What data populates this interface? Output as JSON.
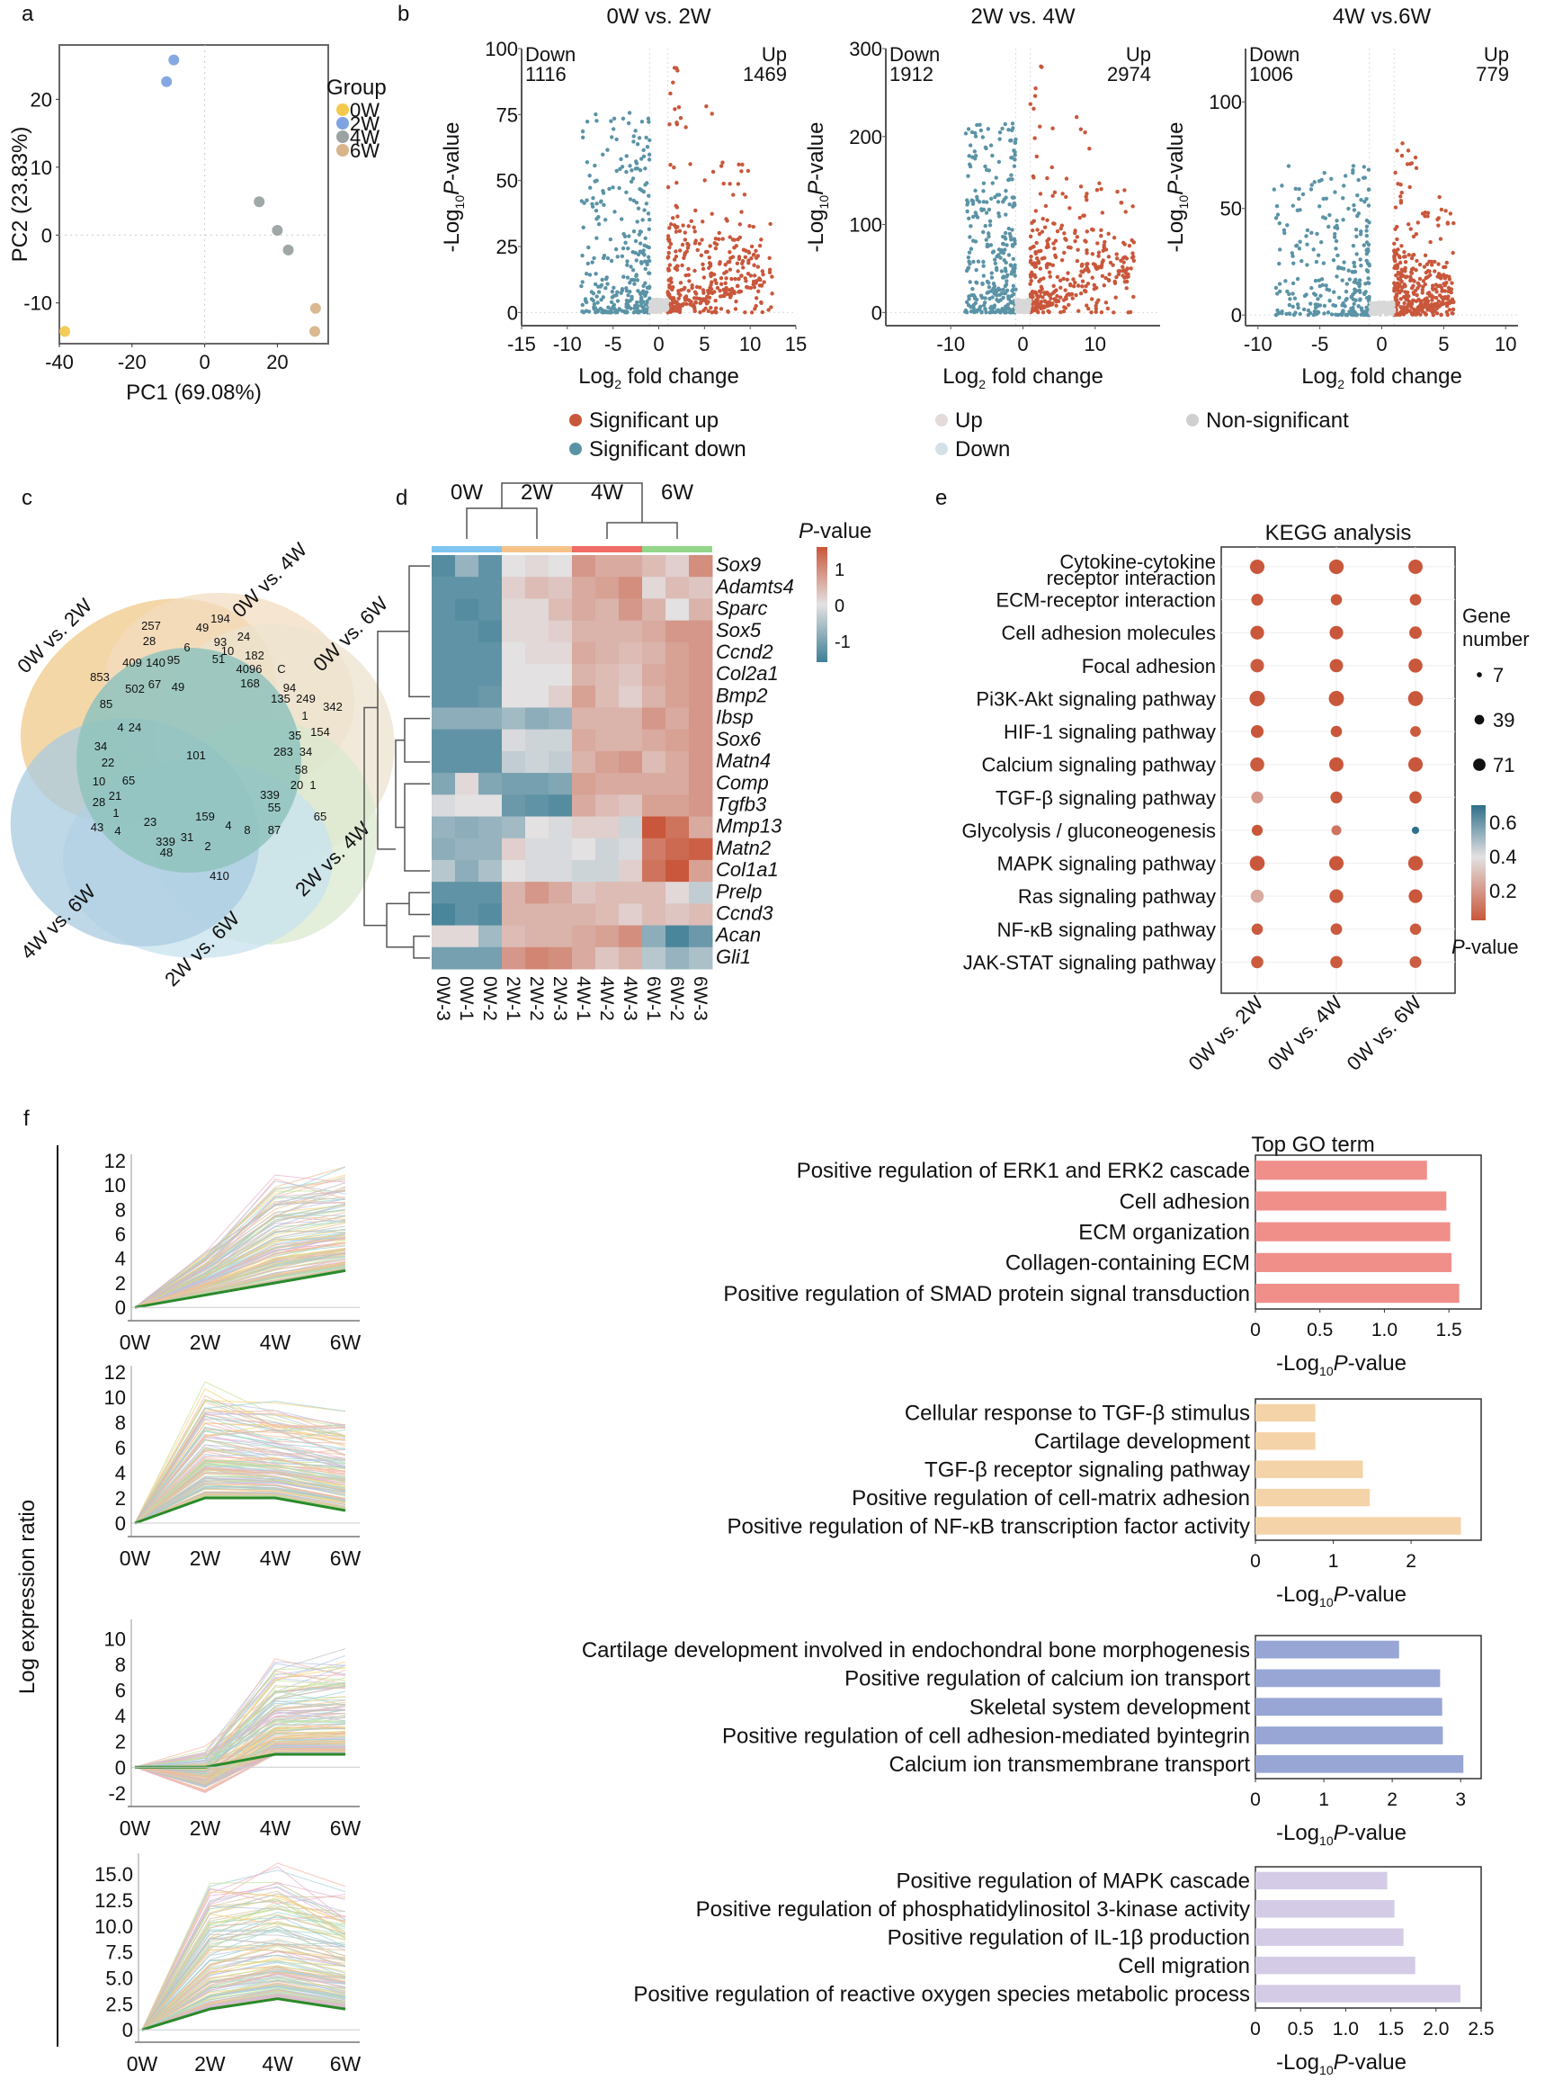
{
  "panel_labels": [
    "a",
    "b",
    "c",
    "d",
    "e",
    "f"
  ],
  "chart_data": [
    {
      "id": "a",
      "type": "scatter",
      "title": "",
      "xlabel": "PC1 (69.08%)",
      "ylabel": "PC2 (23.83%)",
      "xlim": [
        -40,
        34
      ],
      "ylim": [
        -16,
        28
      ],
      "xticks": [
        -40,
        -20,
        0,
        20
      ],
      "yticks": [
        -10,
        0,
        10,
        20
      ],
      "legend_title": "Group",
      "legend_position": "right",
      "groups": [
        {
          "name": "0W",
          "color": "#f2c94c",
          "points": [
            [
              -38.5,
              -14.2
            ]
          ]
        },
        {
          "name": "2W",
          "color": "#7fa3e0",
          "points": [
            [
              -8.5,
              25.8
            ],
            [
              -10.5,
              22.6
            ]
          ]
        },
        {
          "name": "4W",
          "color": "#9aa2a2",
          "points": [
            [
              15,
              4.9
            ],
            [
              20,
              0.7
            ],
            [
              23,
              -2.2
            ]
          ]
        },
        {
          "name": "6W",
          "color": "#d8b48a",
          "points": [
            [
              30.5,
              -10.8
            ],
            [
              30.3,
              -14.2
            ]
          ]
        }
      ]
    },
    {
      "id": "b1",
      "type": "scatter",
      "title": "0W vs. 2W",
      "xlabel": "Log2 fold change",
      "ylabel": "-Log10 P-value",
      "xlim": [
        -15,
        15
      ],
      "ylim": [
        -5,
        100
      ],
      "xticks": [
        -15,
        -10,
        -5,
        0,
        5,
        10,
        15
      ],
      "yticks": [
        0,
        25,
        50,
        75,
        100
      ],
      "down_label": "Down",
      "down_count": "1116",
      "up_label": "Up",
      "up_count": "1469",
      "vlines": [
        -1,
        1
      ],
      "spread": {
        "down_xmin": -8.5,
        "up_xmax": 12.5,
        "down_ymax": 78,
        "up_ymax": 98
      }
    },
    {
      "id": "b2",
      "type": "scatter",
      "title": "2W vs. 4W",
      "xlabel": "Log2 fold change",
      "ylabel": "-Log10 P-value",
      "xlim": [
        -19,
        19
      ],
      "ylim": [
        -15,
        300
      ],
      "xticks": [
        -10,
        0,
        10
      ],
      "yticks": [
        0,
        100,
        200,
        300
      ],
      "down_label": "Down",
      "down_count": "1912",
      "up_label": "Up",
      "up_count": "2974",
      "vlines": [
        -1,
        1
      ],
      "spread": {
        "down_xmin": -8,
        "up_xmax": 15.5,
        "down_ymax": 215,
        "up_ymax": 300
      }
    },
    {
      "id": "b3",
      "type": "scatter",
      "title": "4W vs.6W",
      "xlabel": "Log2 fold change",
      "ylabel": "-Log10 P-value",
      "xlim": [
        -11,
        11
      ],
      "ylim": [
        -5,
        125
      ],
      "xticks": [
        -10,
        -5,
        0,
        5,
        10
      ],
      "yticks": [
        0,
        50,
        100
      ],
      "down_label": "Down",
      "down_count": "1006",
      "up_label": "Up",
      "up_count": "779",
      "vlines": [
        -1,
        1
      ],
      "spread": {
        "down_xmin": -8.7,
        "up_xmax": 5.8,
        "down_ymax": 70,
        "up_ymax": 90
      }
    },
    {
      "id": "b_legend",
      "type": "legend",
      "entries": [
        {
          "label": "Significant up",
          "color": "#c9573b"
        },
        {
          "label": "Significant down",
          "color": "#5b93a6"
        },
        {
          "label": "Up",
          "color": "#e3dada"
        },
        {
          "label": "Down",
          "color": "#d3e0e8"
        },
        {
          "label": "Non-significant",
          "color": "#cfcfcf"
        }
      ]
    },
    {
      "id": "c",
      "type": "venn",
      "sets": [
        "0W vs. 2W",
        "0W vs. 4W",
        "0W vs. 6W",
        "2W vs. 4W",
        "2W vs. 6W",
        "4W vs. 6W"
      ],
      "set_colors": [
        "#f0c98a",
        "#f3dcc0",
        "#ece3cf",
        "#d9e8cf",
        "#c7e2ef",
        "#a9cbe0"
      ],
      "center_color": "#8fc3bd",
      "region_counts": [
        "194",
        "257",
        "49",
        "24",
        "28",
        "6",
        "93",
        "10",
        "51",
        "182",
        "409",
        "140",
        "95",
        "4096",
        "C",
        "853",
        "502",
        "67",
        "49",
        "168",
        "94",
        "135",
        "249",
        "342",
        "85",
        "4",
        "24",
        "1",
        "154",
        "101",
        "35",
        "283",
        "34",
        "34",
        "58",
        "22",
        "65",
        "10",
        "20",
        "1",
        "28",
        "21",
        "339",
        "55",
        "1",
        "65",
        "43",
        "4",
        "23",
        "159",
        "4",
        "8",
        "87",
        "339",
        "31",
        "2",
        "48",
        "410"
      ]
    },
    {
      "id": "d",
      "type": "heatmap",
      "legend_title": "P-value",
      "legend_ticks": [
        1,
        0,
        -1
      ],
      "scale": [
        -1.5,
        1.5
      ],
      "group_labels": [
        "0W",
        "2W",
        "4W",
        "6W"
      ],
      "group_colors": [
        "#7ec6f0",
        "#f7c28a",
        "#ef6b64",
        "#93d68a"
      ],
      "columns": [
        "0W-3",
        "0W-1",
        "0W-2",
        "2W-1",
        "2W-2",
        "2W-3",
        "4W-1",
        "4W-2",
        "4W-3",
        "6W-1",
        "6W-2",
        "6W-3"
      ],
      "rows": [
        "Sox9",
        "Adamts4",
        "Sparc",
        "Sox5",
        "Ccnd2",
        "Col2a1",
        "Bmp2",
        "Ibsp",
        "Sox6",
        "Matn4",
        "Comp",
        "Tgfb3",
        "Mmp13",
        "Matn2",
        "Col1a1",
        "Prelp",
        "Ccnd3",
        "Acan",
        "Gli1"
      ],
      "values": [
        [
          -1.3,
          -0.7,
          -1.2,
          0.0,
          0.1,
          0.0,
          0.8,
          0.6,
          0.6,
          0.4,
          0.2,
          0.9
        ],
        [
          -1.2,
          -1.2,
          -1.2,
          0.2,
          0.4,
          0.3,
          0.6,
          0.7,
          0.9,
          0.1,
          0.4,
          0.3
        ],
        [
          -1.2,
          -1.3,
          -1.2,
          0.1,
          0.1,
          0.4,
          0.6,
          0.5,
          0.8,
          0.5,
          0.0,
          0.5
        ],
        [
          -1.2,
          -1.2,
          -1.3,
          0.1,
          0.1,
          0.2,
          0.5,
          0.5,
          0.5,
          0.6,
          0.8,
          0.8
        ],
        [
          -1.2,
          -1.2,
          -1.2,
          0.0,
          0.1,
          0.1,
          0.6,
          0.5,
          0.4,
          0.5,
          0.7,
          0.8
        ],
        [
          -1.2,
          -1.2,
          -1.2,
          0.0,
          0.0,
          0.0,
          0.5,
          0.4,
          0.3,
          0.6,
          0.7,
          0.8
        ],
        [
          -1.2,
          -1.2,
          -1.1,
          0.0,
          0.0,
          0.2,
          0.7,
          0.4,
          0.2,
          0.5,
          0.7,
          0.8
        ],
        [
          -0.8,
          -0.8,
          -0.8,
          -0.6,
          -0.8,
          -0.7,
          0.5,
          0.5,
          0.5,
          0.8,
          0.6,
          0.8
        ],
        [
          -1.2,
          -1.2,
          -1.2,
          -0.1,
          -0.2,
          -0.2,
          0.6,
          0.5,
          0.5,
          0.6,
          0.7,
          0.8
        ],
        [
          -1.2,
          -1.2,
          -1.2,
          -0.3,
          -0.2,
          -0.3,
          0.5,
          0.7,
          0.8,
          0.4,
          0.6,
          0.8
        ],
        [
          -0.9,
          0.1,
          -0.9,
          -1.0,
          -1.0,
          -0.9,
          0.7,
          0.6,
          0.6,
          0.6,
          0.6,
          0.8
        ],
        [
          -0.1,
          0.0,
          0.0,
          -1.1,
          -1.2,
          -1.3,
          0.6,
          0.4,
          0.3,
          0.7,
          0.7,
          0.8
        ],
        [
          -0.7,
          -0.8,
          -0.7,
          -0.6,
          0.0,
          -0.1,
          0.2,
          0.2,
          -0.2,
          1.6,
          1.2,
          0.6
        ],
        [
          -0.8,
          -0.7,
          -0.7,
          0.2,
          -0.1,
          -0.1,
          0.0,
          -0.2,
          -0.1,
          1.1,
          1.3,
          1.4
        ],
        [
          -0.4,
          -0.8,
          -0.5,
          0.0,
          -0.1,
          -0.1,
          -0.2,
          -0.2,
          0.2,
          1.2,
          1.7,
          0.7
        ],
        [
          -1.2,
          -1.2,
          -1.2,
          0.5,
          0.8,
          0.6,
          0.3,
          0.4,
          0.4,
          0.4,
          0.1,
          -0.3
        ],
        [
          -1.4,
          -1.2,
          -1.3,
          0.5,
          0.5,
          0.5,
          0.5,
          0.4,
          0.2,
          0.4,
          0.3,
          0.4
        ],
        [
          0.1,
          0.1,
          -0.6,
          0.4,
          0.5,
          0.5,
          0.6,
          0.7,
          0.9,
          -0.8,
          -1.4,
          -1.1
        ],
        [
          -1.0,
          -1.0,
          -1.0,
          0.8,
          1.0,
          0.9,
          0.6,
          0.3,
          0.5,
          -0.4,
          -0.7,
          -0.5
        ]
      ]
    },
    {
      "id": "e",
      "type": "scatter",
      "title": "KEGG analysis",
      "categories": [
        "0W vs. 2W",
        "0W vs. 4W",
        "0W vs. 6W"
      ],
      "pathways": [
        "Cytokine-cytokine receptor interaction",
        "ECM-receptor interaction",
        "Cell adhesion molecules",
        "Focal adhesion",
        "Pi3K-Akt signaling pathway",
        "HIF-1 signaling pathway",
        "Calcium signaling pathway",
        "TGF-β signaling pathway",
        "Glycolysis / gluconeogenesis",
        "MAPK signaling pathway",
        "Ras signaling pathway",
        "NF-κB signaling pathway",
        "JAK-STAT signaling pathway"
      ],
      "gene_number": [
        [
          60,
          62,
          58
        ],
        [
          35,
          30,
          32
        ],
        [
          52,
          50,
          40
        ],
        [
          50,
          48,
          55
        ],
        [
          71,
          68,
          65
        ],
        [
          42,
          30,
          25
        ],
        [
          55,
          58,
          60
        ],
        [
          35,
          35,
          38
        ],
        [
          28,
          20,
          7
        ],
        [
          65,
          60,
          62
        ],
        [
          45,
          52,
          52
        ],
        [
          30,
          32,
          30
        ],
        [
          38,
          38,
          34
        ]
      ],
      "p_value": [
        [
          0.02,
          0.02,
          0.02
        ],
        [
          0.02,
          0.02,
          0.02
        ],
        [
          0.02,
          0.02,
          0.02
        ],
        [
          0.03,
          0.02,
          0.02
        ],
        [
          0.02,
          0.02,
          0.02
        ],
        [
          0.02,
          0.02,
          0.03
        ],
        [
          0.03,
          0.02,
          0.02
        ],
        [
          0.2,
          0.02,
          0.02
        ],
        [
          0.02,
          0.1,
          0.62
        ],
        [
          0.02,
          0.02,
          0.02
        ],
        [
          0.25,
          0.03,
          0.02
        ],
        [
          0.03,
          0.03,
          0.03
        ],
        [
          0.03,
          0.03,
          0.04
        ]
      ],
      "size_legend_title": "Gene number",
      "size_legend": [
        7,
        39,
        71
      ],
      "color_legend_title": "P-value",
      "color_legend_ticks": [
        0.6,
        0.4,
        0.2
      ]
    },
    {
      "id": "f_profiles",
      "type": "line",
      "ylabel": "Log expression ratio",
      "x": [
        "0W",
        "2W",
        "4W",
        "6W"
      ],
      "panels": [
        {
          "yticks": [
            "0",
            "2",
            "4",
            "6",
            "8",
            "10",
            "12"
          ],
          "ylim": [
            -0.5,
            12.5
          ],
          "model": [
            0,
            1,
            2,
            3
          ],
          "max_profile": [
            0,
            5,
            11.5,
            12
          ]
        },
        {
          "yticks": [
            "0",
            "2",
            "4",
            "6",
            "8",
            "10",
            "12"
          ],
          "ylim": [
            -0.5,
            12.5
          ],
          "model": [
            0,
            2,
            2,
            1
          ],
          "max_profile": [
            0,
            12,
            10.5,
            9.8
          ]
        },
        {
          "yticks": [
            "-2",
            "0",
            "2",
            "4",
            "6",
            "8",
            "10"
          ],
          "ylim": [
            -2.5,
            11.5
          ],
          "model": [
            0,
            0,
            1,
            1
          ],
          "max_profile": [
            0,
            3,
            10.5,
            11.3
          ]
        },
        {
          "yticks": [
            "0",
            "2.5",
            "5.0",
            "7.5",
            "10.0",
            "12.5",
            "15.0"
          ],
          "ylim": [
            -0.5,
            17
          ],
          "model": [
            0,
            2,
            3,
            2
          ],
          "max_profile": [
            0,
            15,
            16.5,
            14
          ]
        }
      ]
    },
    {
      "id": "f_go",
      "type": "bar",
      "title": "Top GO term",
      "xlabel": "-Log10 P-value",
      "panels": [
        {
          "color": "#f08e8a",
          "xlim": [
            0,
            1.75
          ],
          "xticks": [
            "0",
            "0.5",
            "1.0",
            "1.5"
          ],
          "xtick_values": [
            0,
            0.5,
            1.0,
            1.5
          ],
          "categories": [
            "Positive regulation of ERK1 and ERK2 cascade",
            "Cell adhesion",
            "ECM organization",
            "Collagen-containing ECM",
            "Positive regulation of SMAD protein signal transduction"
          ],
          "values": [
            1.33,
            1.48,
            1.51,
            1.52,
            1.58
          ]
        },
        {
          "color": "#f5d3a8",
          "xlim": [
            0,
            2.9
          ],
          "xticks": [
            "0",
            "1",
            "2"
          ],
          "xtick_values": [
            0,
            1,
            2
          ],
          "categories": [
            "Cellular response to TGF-β stimulus",
            "Cartilage development",
            "TGF-β receptor signaling pathway",
            "Positive regulation of cell-matrix adhesion",
            "Positive regulation of NF-κB transcription factor activity"
          ],
          "values": [
            0.77,
            0.77,
            1.38,
            1.47,
            2.64
          ]
        },
        {
          "color": "#97a6d4",
          "xlim": [
            0,
            3.3
          ],
          "xticks": [
            "0",
            "1",
            "2",
            "3"
          ],
          "xtick_values": [
            0,
            1,
            2,
            3
          ],
          "categories": [
            "Cartilage development involved in endochondral bone morphogenesis",
            "Positive regulation of calcium ion transport",
            "Skeletal system development",
            "Positive regulation of cell adhesion-mediated byintegrin",
            "Calcium ion transmembrane transport"
          ],
          "values": [
            2.1,
            2.7,
            2.73,
            2.74,
            3.04
          ]
        },
        {
          "color": "#d4cce6",
          "xlim": [
            0,
            2.5
          ],
          "xticks": [
            "0",
            "0.5",
            "1.0",
            "1.5",
            "2.0",
            "2.5"
          ],
          "xtick_values": [
            0,
            0.5,
            1.0,
            1.5,
            2.0,
            2.5
          ],
          "categories": [
            "Positive regulation of MAPK cascade",
            "Positive regulation of phosphatidylinositol 3-kinase activity",
            "Positive regulation of IL-1β production",
            "Cell migration",
            "Positive regulation of reactive oxygen species metabolic process"
          ],
          "values": [
            1.46,
            1.54,
            1.64,
            1.77,
            2.27
          ]
        }
      ]
    }
  ]
}
